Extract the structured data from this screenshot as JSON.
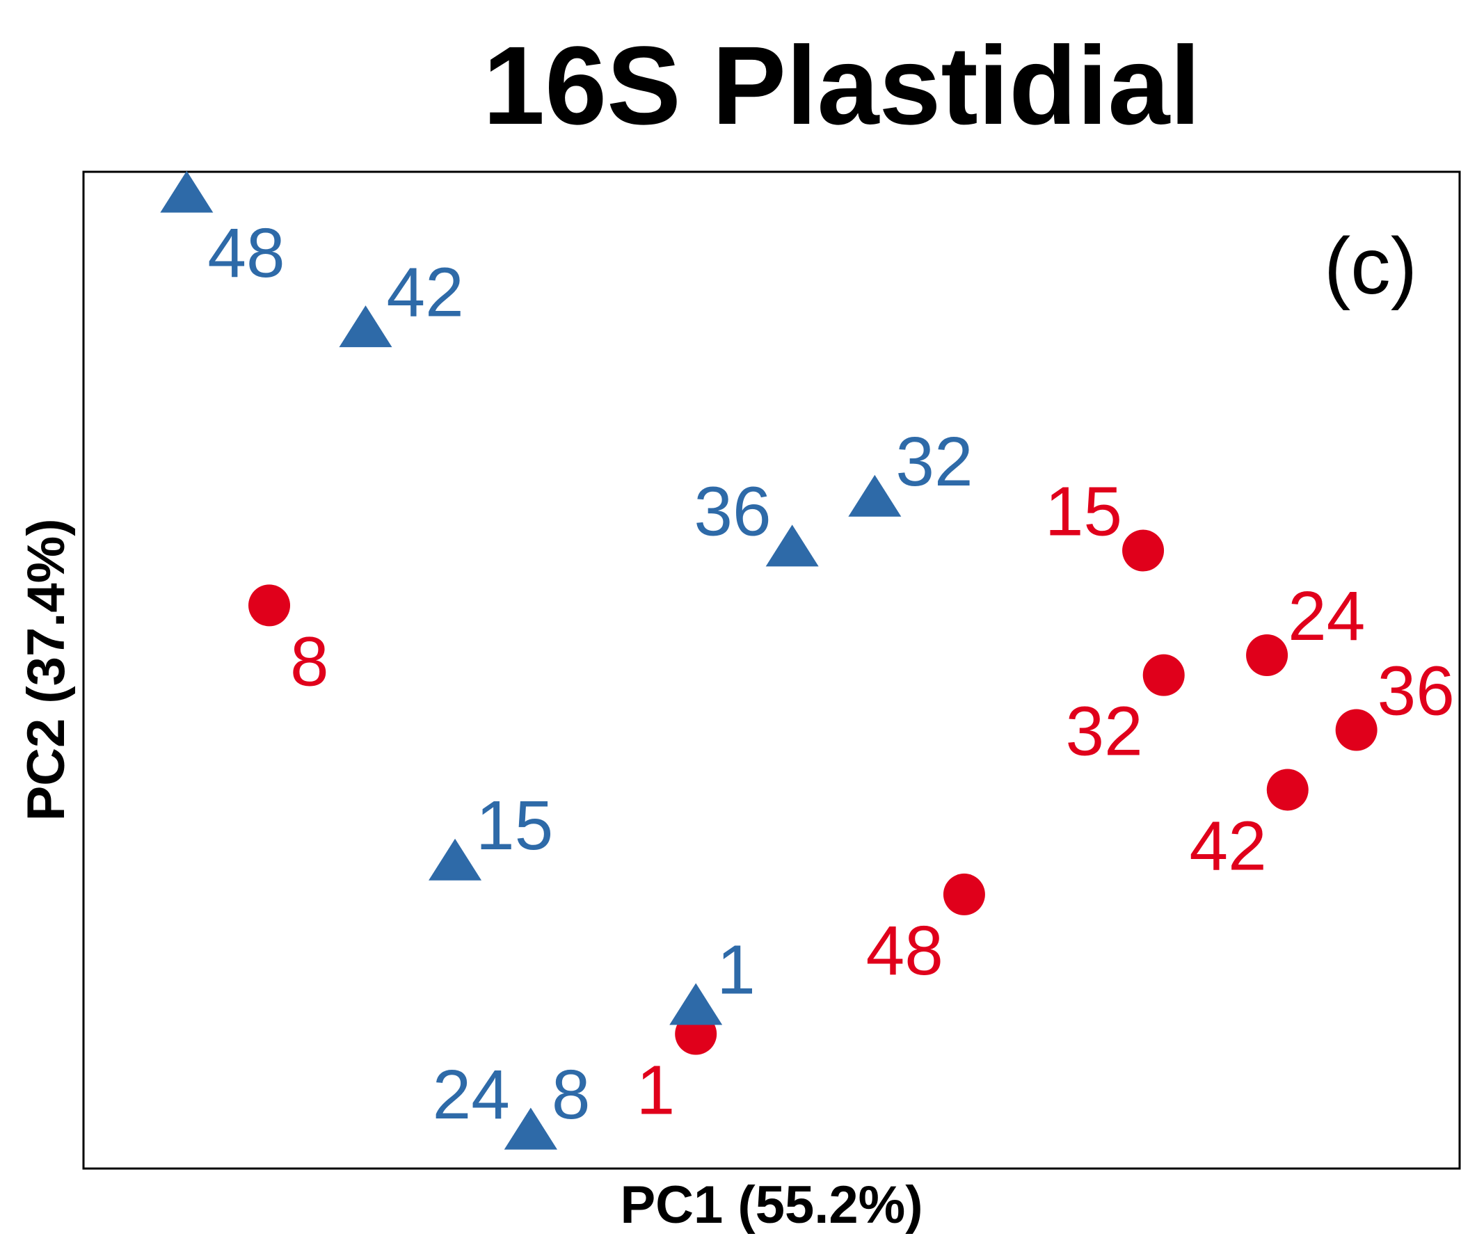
{
  "chart_data": {
    "type": "scatter",
    "title": "16S Plastidial",
    "panel_label": "(c)",
    "xlabel": "PC1 (55.2%)",
    "ylabel": "PC2 (37.4%)",
    "xlim": [
      -1.0,
      1.0
    ],
    "ylim": [
      -1.0,
      1.0
    ],
    "grid": false,
    "legend": "none",
    "series": [
      {
        "marker": "triangle",
        "color": "#2e6aa8",
        "points": [
          {
            "label": "48",
            "x": -0.85,
            "y": 0.95,
            "label_pos": "below-right"
          },
          {
            "label": "42",
            "x": -0.59,
            "y": 0.68,
            "label_pos": "above-right"
          },
          {
            "label": "36",
            "x": 0.03,
            "y": 0.24,
            "label_pos": "above-left"
          },
          {
            "label": "32",
            "x": 0.15,
            "y": 0.34,
            "label_pos": "above-right"
          },
          {
            "label": "15",
            "x": -0.46,
            "y": -0.39,
            "label_pos": "above-right"
          },
          {
            "label": "1",
            "x": -0.11,
            "y": -0.68,
            "label_pos": "above-right"
          },
          {
            "label": "24",
            "x": -0.35,
            "y": -0.93,
            "label_pos": "above-left"
          },
          {
            "label": "8",
            "x": -0.35,
            "y": -0.93,
            "label_pos": "above-right"
          }
        ]
      },
      {
        "marker": "circle",
        "color": "#e0001b",
        "points": [
          {
            "label": "8",
            "x": -0.73,
            "y": 0.13,
            "label_pos": "below-right"
          },
          {
            "label": "15",
            "x": 0.54,
            "y": 0.24,
            "label_pos": "above-left"
          },
          {
            "label": "24",
            "x": 0.72,
            "y": 0.03,
            "label_pos": "above-right"
          },
          {
            "label": "32",
            "x": 0.57,
            "y": -0.01,
            "label_pos": "below-left"
          },
          {
            "label": "36",
            "x": 0.85,
            "y": -0.12,
            "label_pos": "above-right"
          },
          {
            "label": "42",
            "x": 0.75,
            "y": -0.24,
            "label_pos": "below-left"
          },
          {
            "label": "48",
            "x": 0.28,
            "y": -0.45,
            "label_pos": "below-left"
          },
          {
            "label": "1",
            "x": -0.11,
            "y": -0.73,
            "label_pos": "below-left"
          }
        ]
      }
    ]
  }
}
